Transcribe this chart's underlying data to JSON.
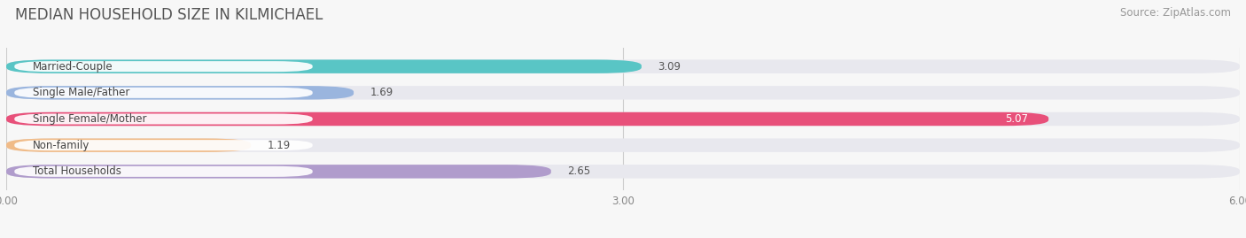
{
  "title": "MEDIAN HOUSEHOLD SIZE IN KILMICHAEL",
  "source": "Source: ZipAtlas.com",
  "categories": [
    "Married-Couple",
    "Single Male/Father",
    "Single Female/Mother",
    "Non-family",
    "Total Households"
  ],
  "values": [
    3.09,
    1.69,
    5.07,
    1.19,
    2.65
  ],
  "bar_colors": [
    "#59c5c5",
    "#9ab5de",
    "#e8507a",
    "#f0bb88",
    "#b09ccc"
  ],
  "bar_bg_color": "#e8e8ee",
  "xlim": [
    0,
    6.0
  ],
  "xtick_labels": [
    "0.00",
    "3.00",
    "6.00"
  ],
  "xtick_values": [
    0.0,
    3.0,
    6.0
  ],
  "background_color": "#f7f7f7",
  "title_fontsize": 12,
  "source_fontsize": 8.5,
  "bar_label_fontsize": 8.5,
  "value_fontsize": 8.5,
  "bar_height": 0.52,
  "bar_gap": 0.18
}
